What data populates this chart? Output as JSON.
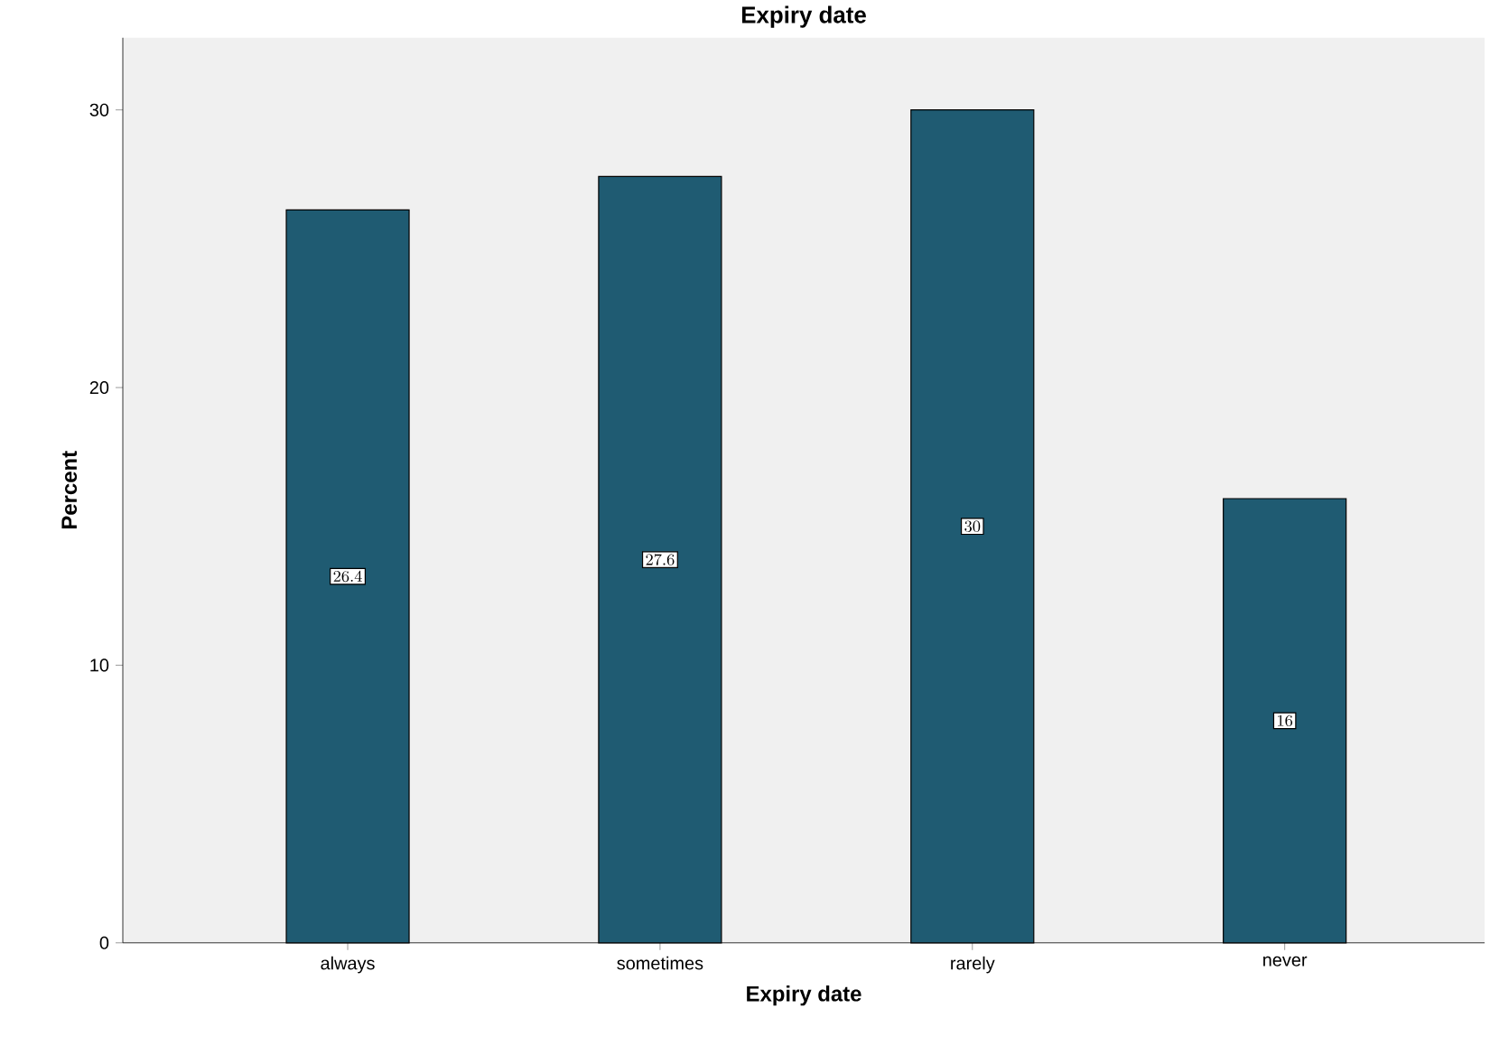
{
  "chart_data": {
    "type": "bar",
    "title": "Expiry date",
    "xlabel": "Expiry date",
    "ylabel": "Percent",
    "categories": [
      "always",
      "sometimes",
      "rarely",
      "never"
    ],
    "values": [
      26.4,
      27.6,
      30,
      16
    ],
    "color": "#1f5b72",
    "ylim": [
      0,
      32.6
    ],
    "yticks": [
      0,
      10,
      20,
      30
    ],
    "data_labels": true
  }
}
